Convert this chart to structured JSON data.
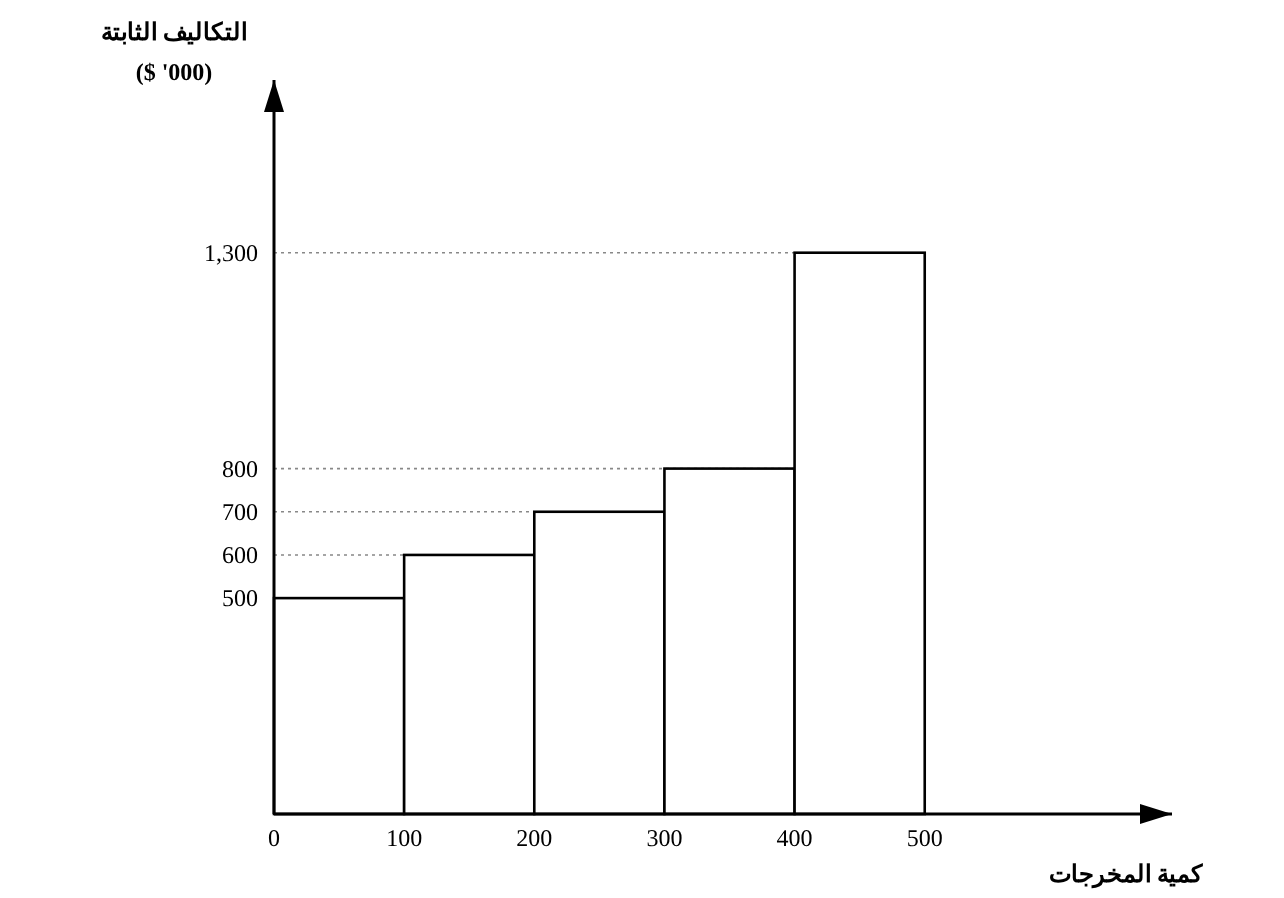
{
  "chart_data": {
    "type": "histogram",
    "bins": [
      0,
      100,
      200,
      300,
      400,
      500
    ],
    "values": [
      500,
      600,
      700,
      800,
      1300
    ],
    "color": "#ffffff",
    "xlabel": "كمية المخرجات",
    "ylabel": "التكاليف الثابتة\n($ '000)",
    "xlim": [
      0,
      690
    ],
    "xticks": [
      0,
      100,
      200,
      300,
      400,
      500
    ],
    "ylim": [
      0,
      1700
    ],
    "yticks": [
      500,
      600,
      700,
      800,
      {
        "value": 1300,
        "label": "1,300"
      }
    ],
    "grid": "y",
    "line_style": "dotted"
  }
}
